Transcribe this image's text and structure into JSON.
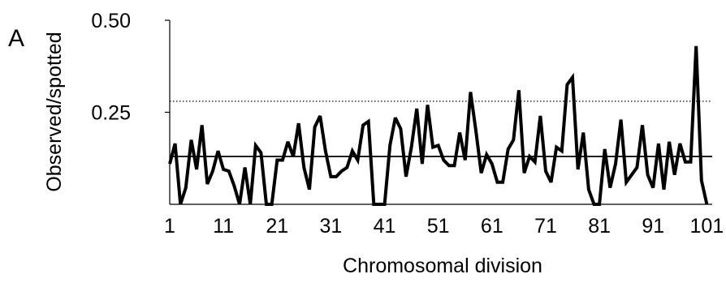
{
  "panel_label": "A",
  "chart_data": {
    "type": "line",
    "xlabel": "Chromosomal division",
    "ylabel": "Observed/spotted",
    "xlim": [
      1,
      102
    ],
    "ylim": [
      0,
      0.5
    ],
    "x_ticks": [
      1,
      11,
      21,
      31,
      41,
      51,
      61,
      71,
      81,
      91,
      101
    ],
    "y_ticks": [
      {
        "value": 0.5,
        "label": "0.50"
      },
      {
        "value": 0.25,
        "label": "0.25"
      }
    ],
    "grid": false,
    "legend": "none",
    "reference_lines": [
      {
        "style": "solid",
        "y": 0.13
      },
      {
        "style": "dotted",
        "y": 0.28
      }
    ],
    "series": [
      {
        "color": "#000000",
        "values": [
          0.11,
          0.165,
          0.0,
          0.045,
          0.175,
          0.095,
          0.215,
          0.055,
          0.09,
          0.145,
          0.095,
          0.09,
          0.05,
          0.0,
          0.1,
          0.0,
          0.16,
          0.14,
          0.0,
          0.0,
          0.12,
          0.12,
          0.17,
          0.13,
          0.22,
          0.1,
          0.04,
          0.21,
          0.24,
          0.145,
          0.075,
          0.075,
          0.09,
          0.1,
          0.145,
          0.12,
          0.215,
          0.225,
          0.0,
          0.0,
          0.0,
          0.16,
          0.235,
          0.205,
          0.075,
          0.155,
          0.26,
          0.11,
          0.27,
          0.155,
          0.16,
          0.12,
          0.105,
          0.105,
          0.195,
          0.12,
          0.305,
          0.2,
          0.085,
          0.135,
          0.11,
          0.06,
          0.06,
          0.15,
          0.175,
          0.31,
          0.085,
          0.13,
          0.115,
          0.24,
          0.09,
          0.06,
          0.155,
          0.145,
          0.325,
          0.345,
          0.095,
          0.195,
          0.04,
          0.0,
          0.0,
          0.15,
          0.045,
          0.11,
          0.23,
          0.06,
          0.08,
          0.1,
          0.215,
          0.08,
          0.045,
          0.165,
          0.04,
          0.17,
          0.08,
          0.165,
          0.115,
          0.115,
          0.43,
          0.065,
          0.0
        ]
      }
    ]
  }
}
